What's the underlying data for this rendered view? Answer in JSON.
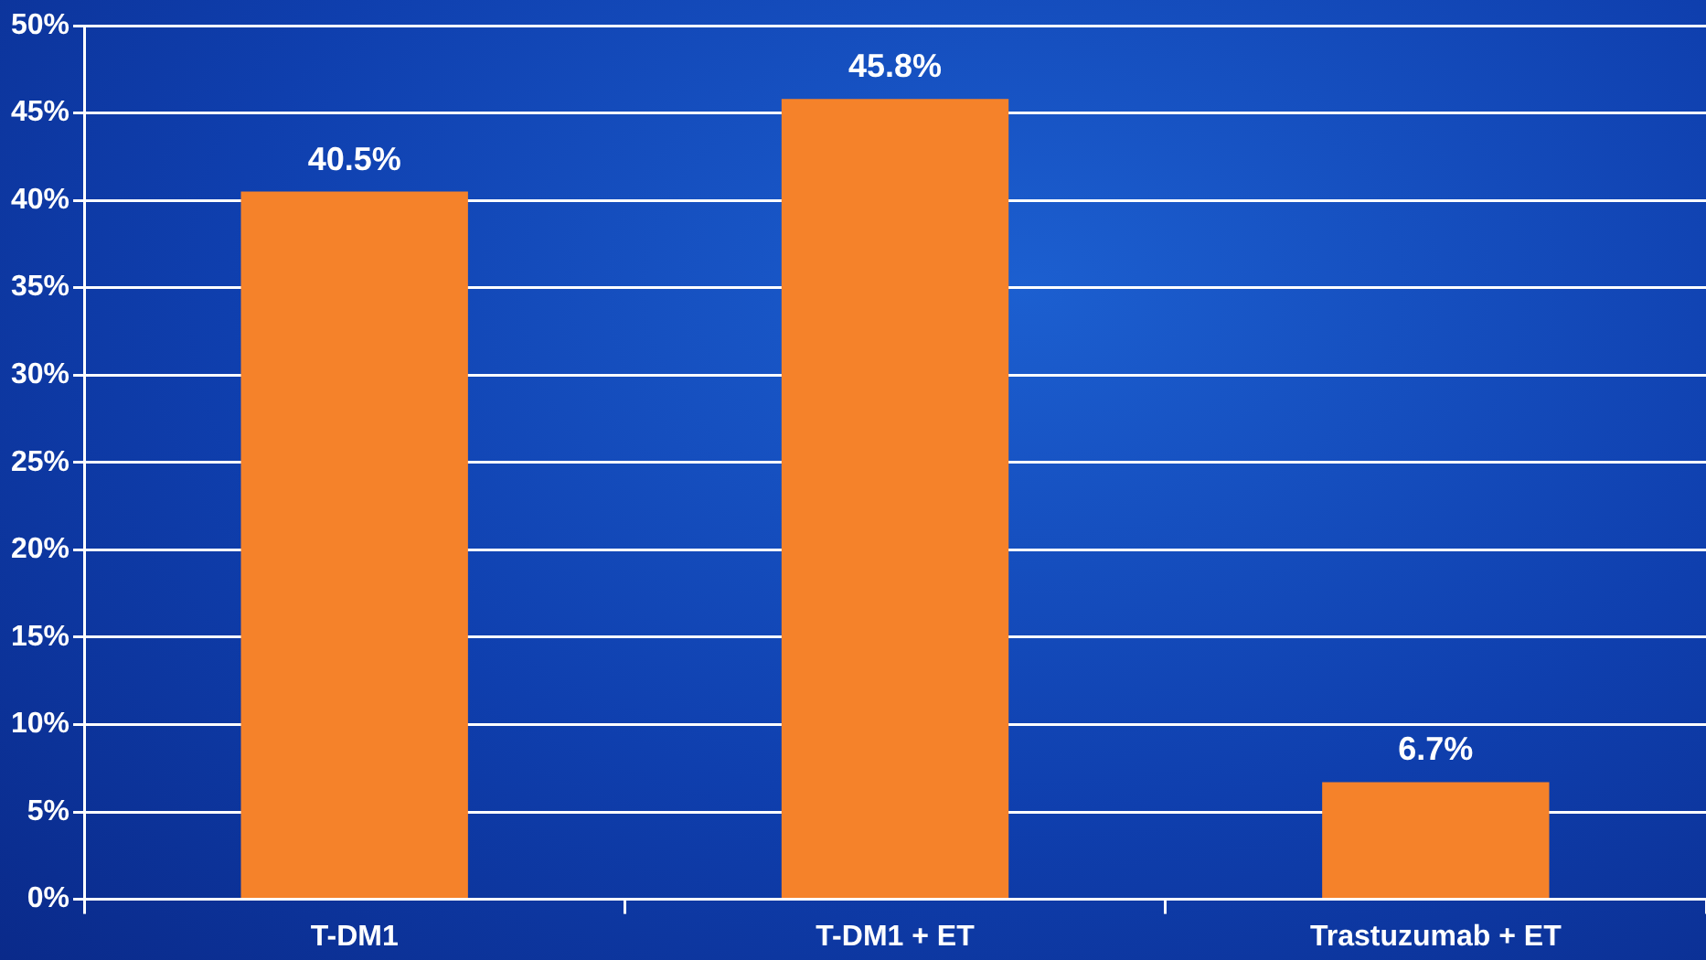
{
  "chart_data": {
    "type": "bar",
    "categories": [
      "T-DM1",
      "T-DM1 + ET",
      "Trastuzumab + ET"
    ],
    "values": [
      40.5,
      45.8,
      6.7
    ],
    "color": "#f5822a",
    "value_labels": [
      "40.5%",
      "45.8%",
      "6.7%"
    ],
    "ylim": [
      0,
      50
    ],
    "yticks": [
      {
        "value": 0,
        "label": "0%"
      },
      {
        "value": 5,
        "label": "5%"
      },
      {
        "value": 10,
        "label": "10%"
      },
      {
        "value": 15,
        "label": "15%"
      },
      {
        "value": 20,
        "label": "20%"
      },
      {
        "value": 25,
        "label": "25%"
      },
      {
        "value": 30,
        "label": "30%"
      },
      {
        "value": 35,
        "label": "35%"
      },
      {
        "value": 40,
        "label": "40%"
      },
      {
        "value": 45,
        "label": "45%"
      },
      {
        "value": 50,
        "label": "50%"
      }
    ],
    "grid": "y",
    "legend": false
  }
}
